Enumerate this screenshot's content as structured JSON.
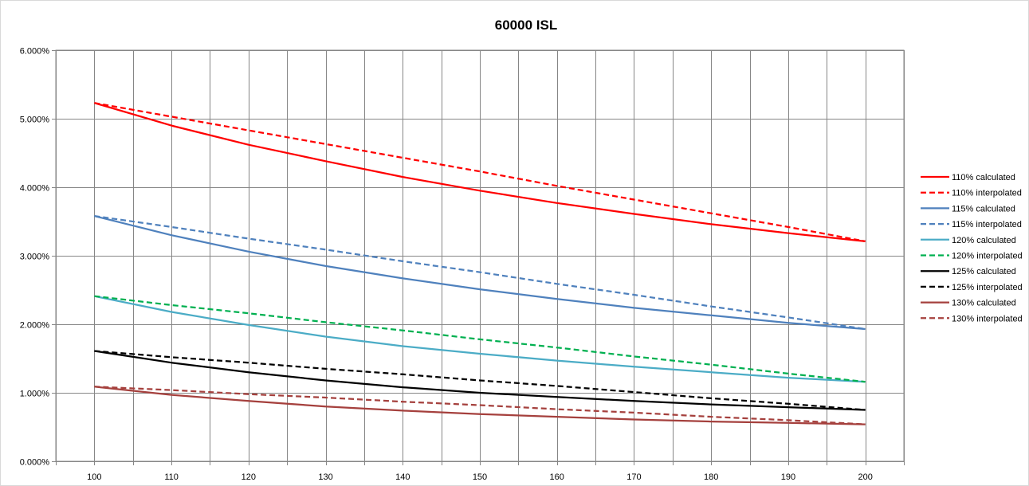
{
  "chart_data": {
    "type": "line",
    "title": "60000 ISL",
    "xlabel": "",
    "ylabel": "",
    "x": [
      100,
      110,
      120,
      130,
      140,
      150,
      160,
      170,
      180,
      190,
      200
    ],
    "x_ticks": [
      "100",
      "110",
      "120",
      "130",
      "140",
      "150",
      "160",
      "170",
      "180",
      "190",
      "200"
    ],
    "xlim": [
      95,
      205
    ],
    "ylim": [
      0,
      6
    ],
    "y_ticks": [
      {
        "value": 0,
        "label": "0.000%"
      },
      {
        "value": 1,
        "label": "1.000%"
      },
      {
        "value": 2,
        "label": "2.000%"
      },
      {
        "value": 3,
        "label": "3.000%"
      },
      {
        "value": 4,
        "label": "4.000%"
      },
      {
        "value": 5,
        "label": "5.000%"
      },
      {
        "value": 6,
        "label": "6.000%"
      }
    ],
    "grid": true,
    "legend_position": "right",
    "series": [
      {
        "name": "110% calculated",
        "color": "#ff0000",
        "dash": false,
        "values": [
          5.23,
          4.9,
          4.62,
          4.38,
          4.15,
          3.95,
          3.77,
          3.61,
          3.46,
          3.33,
          3.21
        ]
      },
      {
        "name": "110% interpolated",
        "color": "#ff0000",
        "dash": true,
        "values": [
          5.23,
          5.03,
          4.83,
          4.63,
          4.43,
          4.23,
          4.02,
          3.82,
          3.62,
          3.42,
          3.21
        ]
      },
      {
        "name": "115% calculated",
        "color": "#4f81bd",
        "dash": false,
        "values": [
          3.58,
          3.3,
          3.06,
          2.85,
          2.67,
          2.51,
          2.37,
          2.24,
          2.13,
          2.02,
          1.93
        ]
      },
      {
        "name": "115% interpolated",
        "color": "#4f81bd",
        "dash": true,
        "values": [
          3.58,
          3.42,
          3.25,
          3.09,
          2.92,
          2.76,
          2.59,
          2.43,
          2.26,
          2.1,
          1.93
        ]
      },
      {
        "name": "120% calculated",
        "color": "#4bacc6",
        "dash": false,
        "values": [
          2.41,
          2.18,
          1.99,
          1.82,
          1.68,
          1.57,
          1.47,
          1.38,
          1.3,
          1.22,
          1.16
        ]
      },
      {
        "name": "120% interpolated",
        "color": "#00b050",
        "dash": true,
        "values": [
          2.41,
          2.28,
          2.16,
          2.03,
          1.91,
          1.78,
          1.66,
          1.53,
          1.41,
          1.28,
          1.16
        ]
      },
      {
        "name": "125% calculated",
        "color": "#000000",
        "dash": false,
        "values": [
          1.61,
          1.44,
          1.3,
          1.18,
          1.08,
          1.0,
          0.94,
          0.88,
          0.83,
          0.79,
          0.75
        ]
      },
      {
        "name": "125% interpolated",
        "color": "#000000",
        "dash": true,
        "values": [
          1.61,
          1.52,
          1.44,
          1.35,
          1.27,
          1.18,
          1.1,
          1.01,
          0.92,
          0.84,
          0.75
        ]
      },
      {
        "name": "130% calculated",
        "color": "#a5403d",
        "dash": false,
        "values": [
          1.09,
          0.97,
          0.88,
          0.8,
          0.74,
          0.69,
          0.65,
          0.61,
          0.58,
          0.56,
          0.54
        ]
      },
      {
        "name": "130% interpolated",
        "color": "#a5403d",
        "dash": true,
        "values": [
          1.09,
          1.04,
          0.98,
          0.93,
          0.87,
          0.82,
          0.76,
          0.71,
          0.65,
          0.6,
          0.54
        ]
      }
    ]
  }
}
